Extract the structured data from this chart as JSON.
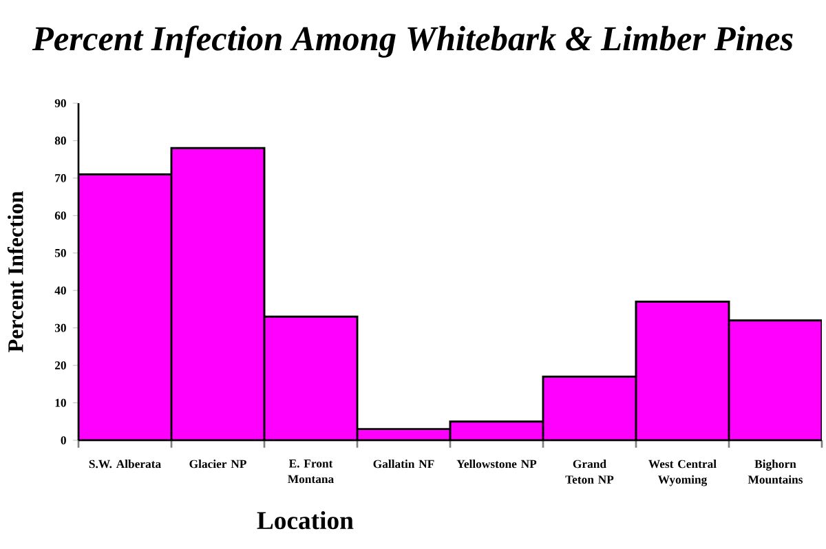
{
  "chart_data": {
    "type": "bar",
    "title": "Percent Infection Among Whitebark & Limber Pines",
    "xlabel": "Location",
    "ylabel": "Percent Infection",
    "categories": [
      "S.W. Alberata",
      "Glacier NP",
      "E. Front Montana",
      "Gallatin NF",
      "Yellowstone NP",
      "Grand Teton NP",
      "West Central Wyoming",
      "Bighorn Mountains"
    ],
    "values": [
      71,
      78,
      33,
      3,
      5,
      17,
      37,
      32
    ],
    "color": "#ff00ff",
    "ylim": [
      0,
      90
    ],
    "yticks": [
      0,
      10,
      20,
      30,
      40,
      50,
      60,
      70,
      80,
      90
    ],
    "grid": false
  }
}
